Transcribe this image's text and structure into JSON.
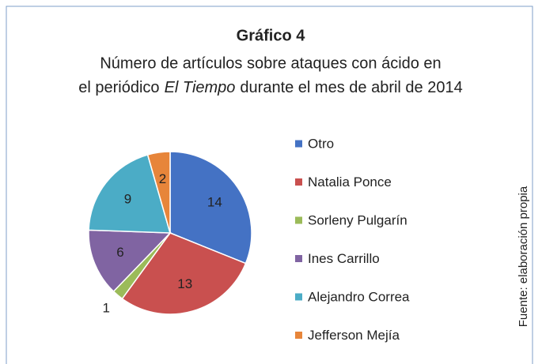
{
  "chart_data": {
    "type": "pie",
    "title": "Gráfico 4",
    "subtitle_parts": [
      "Número de artículos sobre ataques con ácido en",
      "el periódico",
      "El Tiempo",
      "durante el mes de abril de 2014"
    ],
    "categories": [
      "Otro",
      "Natalia Ponce",
      "Sorleny Pulgarín",
      "Ines Carrillo",
      "Alejandro Correa",
      "Jefferson Mejía"
    ],
    "values": [
      14,
      13,
      1,
      6,
      9,
      2
    ],
    "colors": [
      "#4472c4",
      "#c9504f",
      "#9bbb59",
      "#8064a2",
      "#4bacc6",
      "#e7853a"
    ],
    "legend": "right",
    "source": "Fuente: elaboración propia"
  }
}
